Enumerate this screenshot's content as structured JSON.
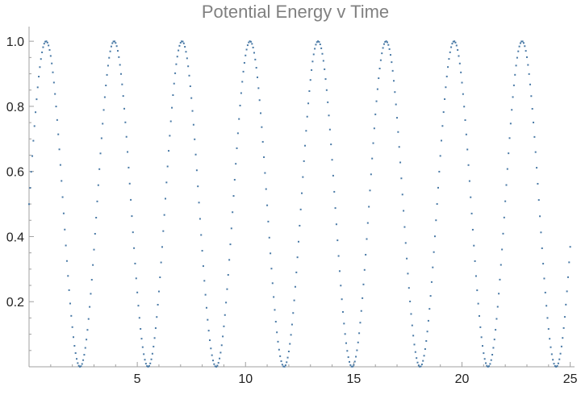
{
  "chart_data": {
    "type": "scatter",
    "title": "Potential Energy v Time",
    "xlabel": "",
    "ylabel": "",
    "xlim": [
      0,
      25.2
    ],
    "ylim": [
      0,
      1.04
    ],
    "grid": false,
    "series_color": "#4a7aa6",
    "function": {
      "form": "y = sin^2(x + 0.785)",
      "samples": 500,
      "x_start": 0,
      "x_end": 25
    },
    "x_major_ticks": [
      5,
      10,
      15,
      20,
      25
    ],
    "x_tick_labels": [
      "5",
      "10",
      "15",
      "20",
      "25"
    ],
    "y_major_ticks": [
      0.2,
      0.4,
      0.6,
      0.8,
      1.0
    ],
    "y_tick_labels": [
      "0.2",
      "0.4",
      "0.6",
      "0.8",
      "1.0"
    ]
  }
}
